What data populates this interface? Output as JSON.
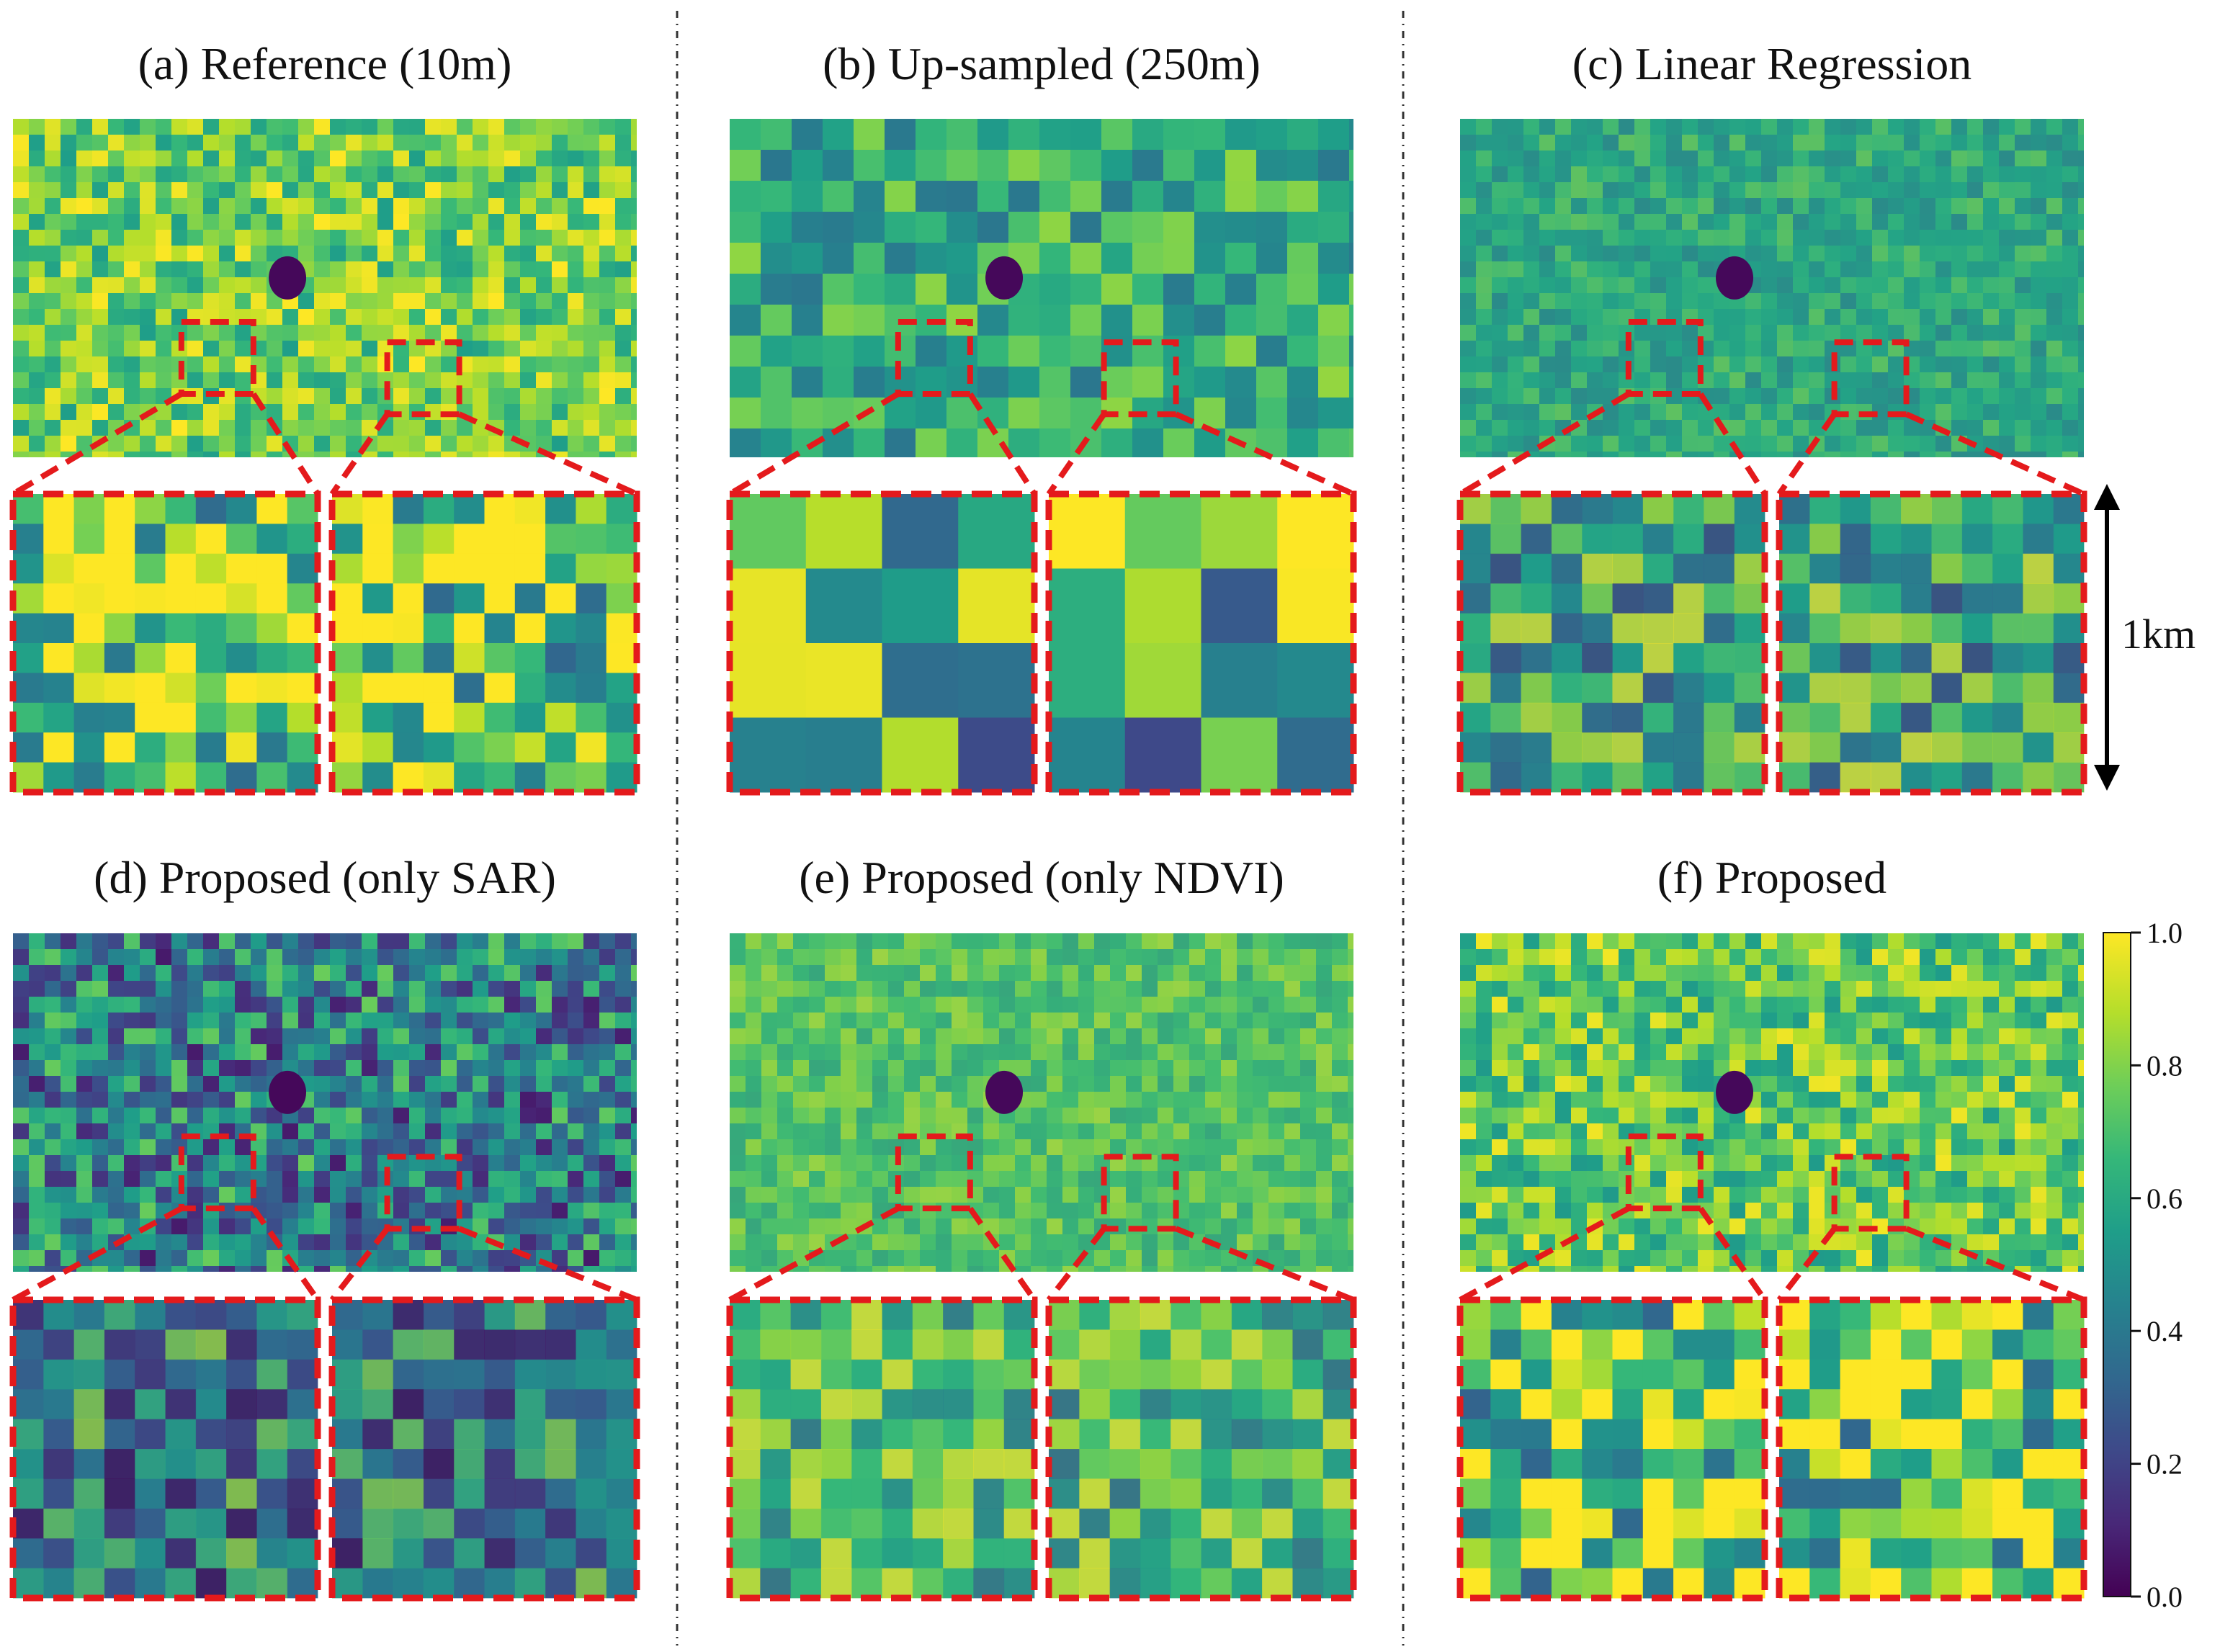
{
  "figure": {
    "panels": [
      {
        "id": "a",
        "title": "(a)  Reference (10m)",
        "style": "fine"
      },
      {
        "id": "b",
        "title": "(b) Up-sampled (250m)",
        "style": "blocky"
      },
      {
        "id": "c",
        "title": "(c) Linear Regression",
        "style": "blur"
      },
      {
        "id": "d",
        "title": "(d) Proposed (only SAR)",
        "style": "sar"
      },
      {
        "id": "e",
        "title": "(e) Proposed (only NDVI)",
        "style": "smooth"
      },
      {
        "id": "f",
        "title": "(f) Proposed",
        "style": "fine2"
      }
    ],
    "scale_bar_label": "1km",
    "colorbar": {
      "colormap": "viridis",
      "ticks": [
        "1.0",
        "0.8",
        "0.6",
        "0.4",
        "0.2",
        "0.0"
      ],
      "colors": [
        "#440154",
        "#482878",
        "#3e4989",
        "#31688e",
        "#26828e",
        "#1f9e89",
        "#35b779",
        "#6ece58",
        "#b5de2b",
        "#fde725"
      ]
    },
    "zoom_box_color": "#e41a1c"
  }
}
